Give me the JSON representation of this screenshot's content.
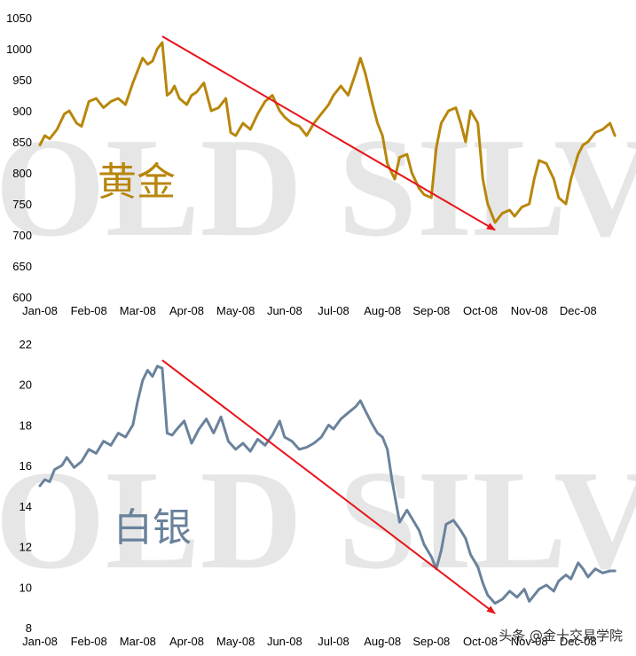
{
  "chart_data": [
    {
      "type": "line",
      "title": "黄金",
      "watermark": "GOLD SILVER",
      "color": "#b8860b",
      "xlabel": "",
      "ylabel": "",
      "categories": [
        "Jan-08",
        "Feb-08",
        "Mar-08",
        "Apr-08",
        "May-08",
        "Jun-08",
        "Jul-08",
        "Aug-08",
        "Sep-08",
        "Oct-08",
        "Nov-08",
        "Dec-08"
      ],
      "ylim": [
        600,
        1050
      ],
      "yticks": [
        "600",
        "650",
        "700",
        "750",
        "800",
        "850",
        "900",
        "950",
        "1000",
        "1050"
      ],
      "series": [
        {
          "name": "黄金",
          "x": [
            0,
            0.1,
            0.2,
            0.35,
            0.5,
            0.6,
            0.75,
            0.85,
            1.0,
            1.15,
            1.3,
            1.45,
            1.6,
            1.75,
            1.9,
            2.0,
            2.1,
            2.2,
            2.3,
            2.4,
            2.5,
            2.6,
            2.68,
            2.75,
            2.85,
            3.0,
            3.1,
            3.2,
            3.35,
            3.5,
            3.65,
            3.8,
            3.9,
            4.0,
            4.15,
            4.3,
            4.45,
            4.6,
            4.75,
            4.9,
            5.0,
            5.15,
            5.3,
            5.45,
            5.6,
            5.75,
            5.9,
            6.0,
            6.15,
            6.3,
            6.45,
            6.55,
            6.65,
            6.8,
            6.9,
            7.0,
            7.1,
            7.25,
            7.35,
            7.5,
            7.6,
            7.75,
            7.85,
            8.0,
            8.1,
            8.2,
            8.35,
            8.5,
            8.6,
            8.7,
            8.8,
            8.95,
            9.05,
            9.15,
            9.3,
            9.45,
            9.6,
            9.7,
            9.85,
            10.0,
            10.1,
            10.2,
            10.35,
            10.5,
            10.6,
            10.75,
            10.85,
            11.0,
            11.1,
            11.2,
            11.35,
            11.5,
            11.65,
            11.75
          ],
          "values": [
            845,
            860,
            855,
            870,
            895,
            900,
            880,
            875,
            915,
            920,
            905,
            915,
            920,
            910,
            945,
            965,
            985,
            975,
            980,
            1000,
            1010,
            925,
            930,
            940,
            920,
            910,
            925,
            930,
            945,
            900,
            905,
            920,
            865,
            860,
            880,
            870,
            895,
            915,
            925,
            900,
            890,
            880,
            875,
            860,
            880,
            895,
            910,
            925,
            940,
            925,
            960,
            985,
            960,
            910,
            880,
            860,
            815,
            790,
            825,
            830,
            800,
            775,
            765,
            760,
            840,
            880,
            900,
            905,
            880,
            850,
            900,
            880,
            790,
            750,
            720,
            735,
            740,
            730,
            745,
            750,
            790,
            820,
            815,
            790,
            760,
            750,
            790,
            830,
            845,
            850,
            865,
            870,
            880,
            860
          ]
        }
      ],
      "trend_arrow": {
        "from": {
          "x": 2.5,
          "y": 1020
        },
        "to": {
          "x": 9.3,
          "y": 708
        }
      }
    },
    {
      "type": "line",
      "title": "白银",
      "watermark": "GOLD SILVER",
      "color": "#6a829c",
      "xlabel": "",
      "ylabel": "",
      "categories": [
        "Jan-08",
        "Feb-08",
        "Mar-08",
        "Apr-08",
        "May-08",
        "Jun-08",
        "Jul-08",
        "Aug-08",
        "Sep-08",
        "Oct-08",
        "Nov-08",
        "Dec-08"
      ],
      "ylim": [
        8,
        22
      ],
      "yticks": [
        "8",
        "10",
        "12",
        "14",
        "16",
        "18",
        "20",
        "22"
      ],
      "series": [
        {
          "name": "白银",
          "x": [
            0,
            0.1,
            0.2,
            0.3,
            0.45,
            0.55,
            0.7,
            0.85,
            1.0,
            1.15,
            1.3,
            1.45,
            1.6,
            1.75,
            1.9,
            2.0,
            2.1,
            2.2,
            2.3,
            2.4,
            2.5,
            2.6,
            2.7,
            2.8,
            2.95,
            3.1,
            3.25,
            3.4,
            3.55,
            3.7,
            3.85,
            4.0,
            4.15,
            4.3,
            4.45,
            4.6,
            4.75,
            4.9,
            5.0,
            5.15,
            5.3,
            5.45,
            5.6,
            5.75,
            5.9,
            6.0,
            6.15,
            6.3,
            6.45,
            6.55,
            6.65,
            6.8,
            6.9,
            7.0,
            7.1,
            7.2,
            7.35,
            7.5,
            7.6,
            7.75,
            7.85,
            8.0,
            8.1,
            8.2,
            8.3,
            8.45,
            8.6,
            8.7,
            8.8,
            8.95,
            9.05,
            9.15,
            9.3,
            9.45,
            9.6,
            9.75,
            9.9,
            10.0,
            10.1,
            10.2,
            10.35,
            10.5,
            10.6,
            10.75,
            10.85,
            11.0,
            11.1,
            11.2,
            11.35,
            11.5,
            11.65,
            11.75
          ],
          "values": [
            15.0,
            15.3,
            15.2,
            15.8,
            16.0,
            16.4,
            15.9,
            16.2,
            16.8,
            16.6,
            17.2,
            17.0,
            17.6,
            17.4,
            18.0,
            19.2,
            20.2,
            20.7,
            20.4,
            20.9,
            20.8,
            17.6,
            17.5,
            17.8,
            18.2,
            17.1,
            17.8,
            18.3,
            17.6,
            18.4,
            17.2,
            16.8,
            17.1,
            16.7,
            17.3,
            17.0,
            17.5,
            18.2,
            17.4,
            17.2,
            16.8,
            16.9,
            17.1,
            17.4,
            18.0,
            17.8,
            18.3,
            18.6,
            18.9,
            19.2,
            18.7,
            18.0,
            17.6,
            17.4,
            16.8,
            15.2,
            13.2,
            13.8,
            13.4,
            12.8,
            12.1,
            11.5,
            10.9,
            11.8,
            13.1,
            13.3,
            12.8,
            12.4,
            11.6,
            11.0,
            10.2,
            9.6,
            9.2,
            9.4,
            9.8,
            9.5,
            9.9,
            9.3,
            9.6,
            9.9,
            10.1,
            9.8,
            10.3,
            10.6,
            10.4,
            11.2,
            10.9,
            10.5,
            10.9,
            10.7,
            10.8,
            10.8
          ]
        }
      ],
      "trend_arrow": {
        "from": {
          "x": 2.5,
          "y": 21.2
        },
        "to": {
          "x": 9.3,
          "y": 8.7
        }
      }
    }
  ],
  "credit": "头条 @金十交易学院"
}
